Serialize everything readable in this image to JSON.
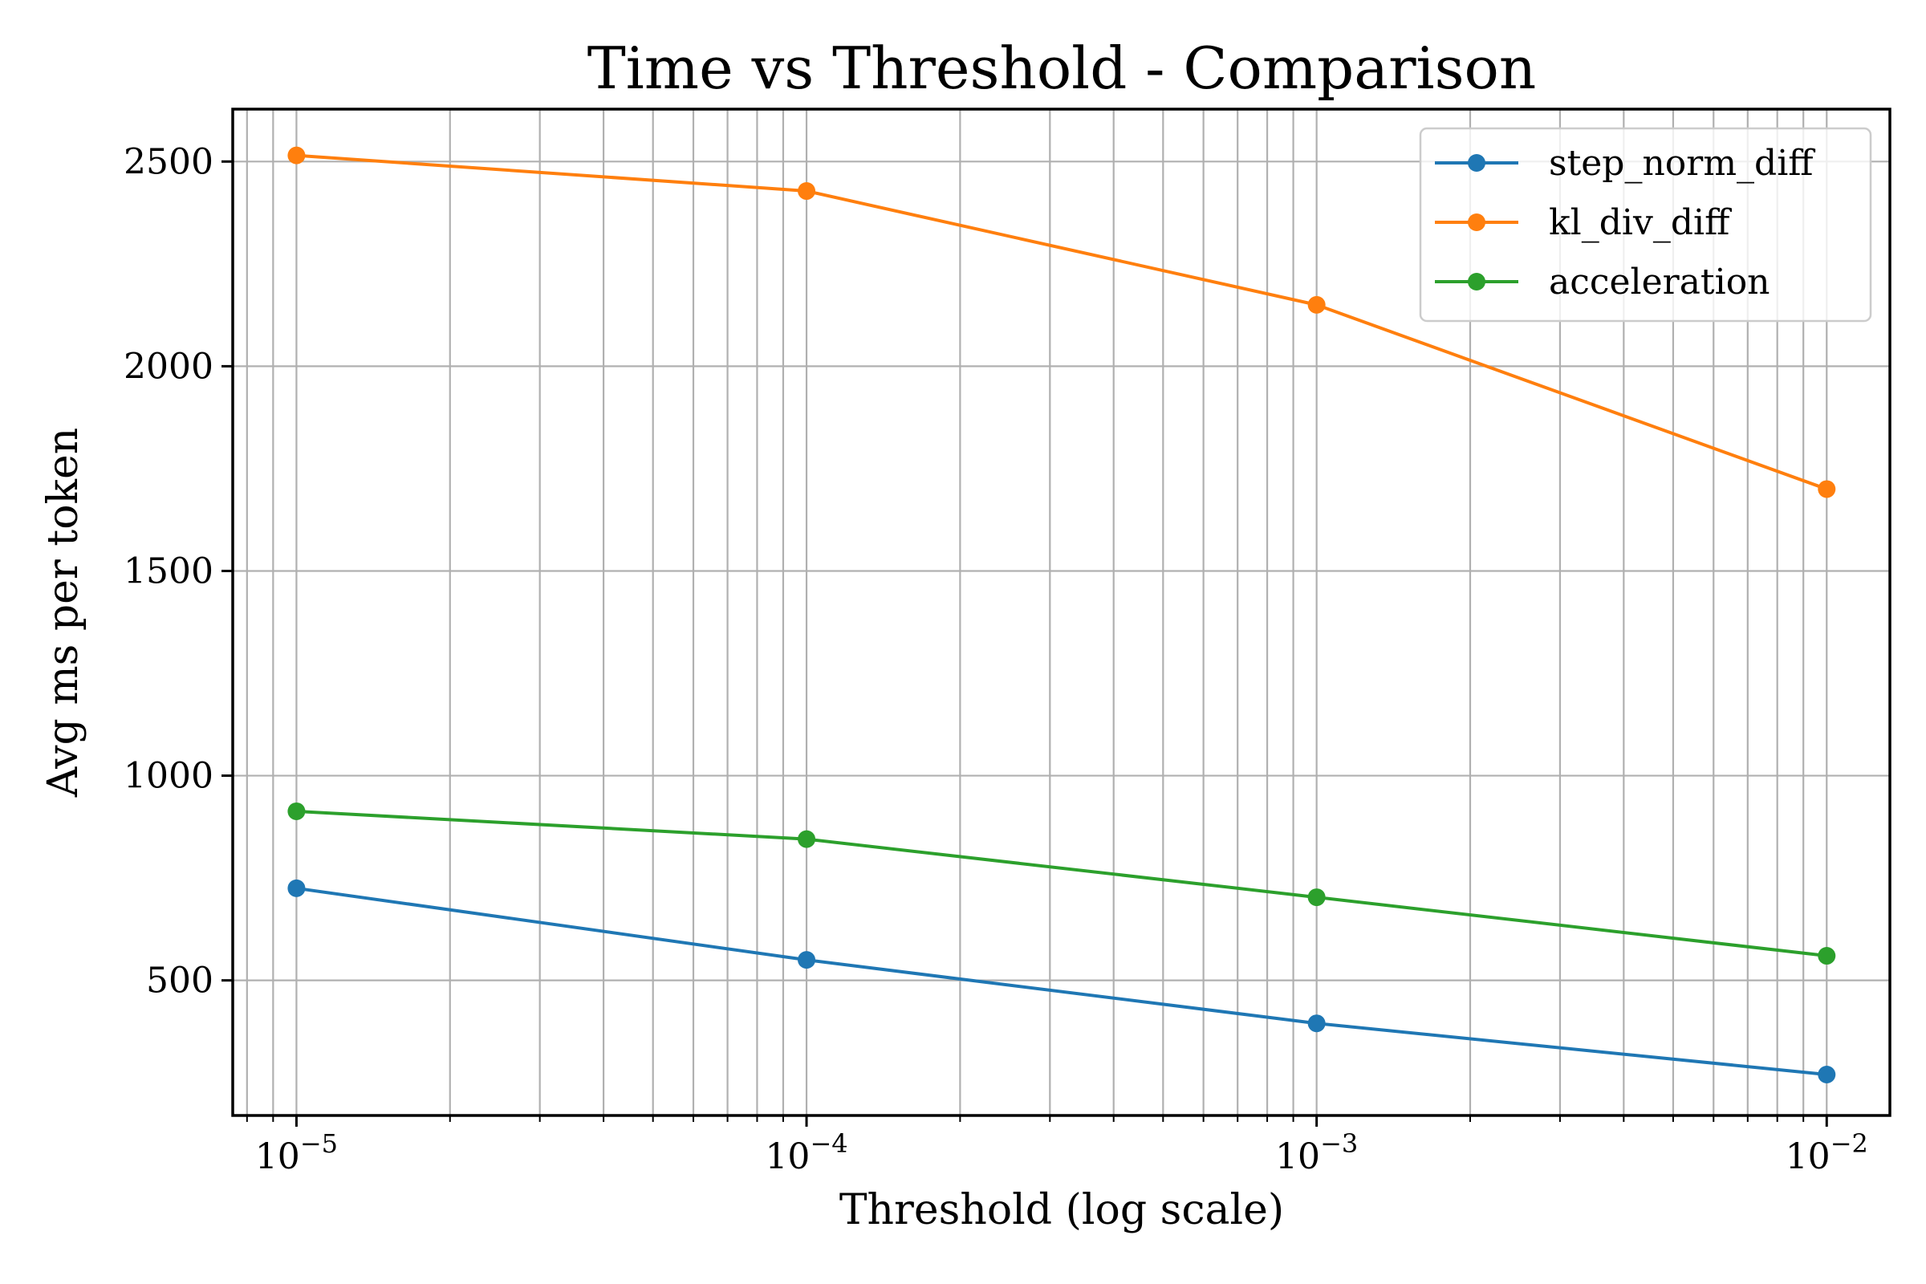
{
  "chart_data": {
    "type": "line",
    "title": "Time vs Threshold - Comparison",
    "xlabel": "Threshold (log scale)",
    "ylabel": "Avg ms per token",
    "xscale": "log",
    "xlim": [
      7.5e-06,
      0.0133
    ],
    "ylim": [
      170,
      2628
    ],
    "grid": true,
    "legend_position": "top-right",
    "x": [
      1e-05,
      0.0001,
      0.001,
      0.01
    ],
    "x_tick_labels": [
      {
        "base": "10",
        "exp": "−5"
      },
      {
        "base": "10",
        "exp": "−4"
      },
      {
        "base": "10",
        "exp": "−3"
      },
      {
        "base": "10",
        "exp": "−2"
      }
    ],
    "y_ticks": [
      500,
      1000,
      1500,
      2000,
      2500
    ],
    "y_tick_labels": [
      "500",
      "1000",
      "1500",
      "2000",
      "2500"
    ],
    "series": [
      {
        "name": "step_norm_diff",
        "color": "#1f77b4",
        "values": [
          725,
          550,
          395,
          270
        ]
      },
      {
        "name": "kl_div_diff",
        "color": "#ff7f0e",
        "values": [
          2515,
          2428,
          2150,
          1700
        ]
      },
      {
        "name": "acceleration",
        "color": "#2ca02c",
        "values": [
          913,
          845,
          703,
          560
        ]
      }
    ]
  }
}
